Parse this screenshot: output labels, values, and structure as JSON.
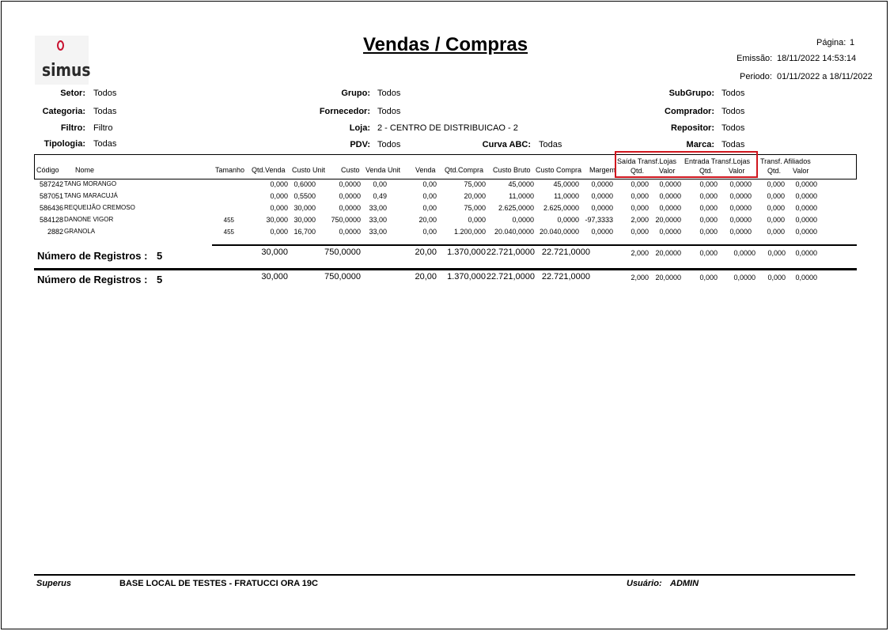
{
  "header": {
    "logo_text": "simus",
    "title": "Vendas / Compras",
    "pagina_label": "Página:",
    "pagina_value": "1",
    "emissao_label": "Emissão:",
    "emissao_value": "18/11/2022 14:53:14",
    "periodo_label": "Periodo:",
    "periodo_value": "01/11/2022 a  18/11/2022"
  },
  "filters": {
    "setor_label": "Setor:",
    "setor": "Todos",
    "grupo_label": "Grupo:",
    "grupo": "Todos",
    "subgrupo_label": "SubGrupo:",
    "subgrupo": "Todos",
    "categoria_label": "Categoria:",
    "categoria": "Todas",
    "fornecedor_label": "Fornecedor:",
    "fornecedor": "Todos",
    "comprador_label": "Comprador:",
    "comprador": "Todos",
    "filtro_label": "Filtro:",
    "filtro": "Filtro",
    "loja_label": "Loja:",
    "loja": "2 - CENTRO DE DISTRIBUICAO - 2",
    "repositor_label": "Repositor:",
    "repositor": "Todos",
    "tipologia_label": "Tipologia:",
    "tipologia": "Todas",
    "pdv_label": "PDV:",
    "pdv": "Todos",
    "curva_label": "Curva ABC:",
    "curva": "Todas",
    "marca_label": "Marca:",
    "marca": "Todas"
  },
  "columns": {
    "codigo": "Código",
    "nome": "Nome",
    "tamanho": "Tamanho",
    "qtd_venda": "Qtd.Venda",
    "custo_unit": "Custo Unit",
    "custo": "Custo",
    "venda_unit": "Venda Unit",
    "venda": "Venda",
    "qtd_compra": "Qtd.Compra",
    "custo_bruto": "Custo Bruto",
    "custo_compra": "Custo Compra",
    "margem": "Margem",
    "saida_group": "Saída Transf.Lojas",
    "saida_qtd": "Qtd.",
    "saida_valor": "Valor",
    "entrada_group": "Entrada Transf.Lojas",
    "entrada_qtd": "Qtd.",
    "entrada_valor": "Valor",
    "afil_group": "Transf. Afiliados",
    "afil_qtd": "Qtd.",
    "afil_valor": "Valor"
  },
  "rows": [
    {
      "codigo": "587242",
      "nome": "TANG MORANGO",
      "tamanho": "",
      "qtd_venda": "0,000",
      "custo_unit": "0,6000",
      "custo": "0,0000",
      "venda_unit": "0,00",
      "venda": "0,00",
      "qtd_compra": "75,000",
      "custo_bruto": "45,0000",
      "custo_compra": "45,0000",
      "margem": "0,0000",
      "s_qtd": "0,000",
      "s_val": "0,0000",
      "e_qtd": "0,000",
      "e_val": "0,0000",
      "a_qtd": "0,000",
      "a_val": "0,0000"
    },
    {
      "codigo": "587051",
      "nome": "TANG MARACUJÁ",
      "tamanho": "",
      "qtd_venda": "0,000",
      "custo_unit": "0,5500",
      "custo": "0,0000",
      "venda_unit": "0,49",
      "venda": "0,00",
      "qtd_compra": "20,000",
      "custo_bruto": "11,0000",
      "custo_compra": "11,0000",
      "margem": "0,0000",
      "s_qtd": "0,000",
      "s_val": "0,0000",
      "e_qtd": "0,000",
      "e_val": "0,0000",
      "a_qtd": "0,000",
      "a_val": "0,0000"
    },
    {
      "codigo": "586436",
      "nome": "REQUEIJÃO CREMOSO",
      "tamanho": "",
      "qtd_venda": "0,000",
      "custo_unit": "30,000",
      "custo": "0,0000",
      "venda_unit": "33,00",
      "venda": "0,00",
      "qtd_compra": "75,000",
      "custo_bruto": "2.625,0000",
      "custo_compra": "2.625,0000",
      "margem": "0,0000",
      "s_qtd": "0,000",
      "s_val": "0,0000",
      "e_qtd": "0,000",
      "e_val": "0,0000",
      "a_qtd": "0,000",
      "a_val": "0,0000"
    },
    {
      "codigo": "584128",
      "nome": "DANONE VIGOR",
      "tamanho": "455",
      "qtd_venda": "30,000",
      "custo_unit": "30,000",
      "custo": "750,0000",
      "venda_unit": "33,00",
      "venda": "20,00",
      "qtd_compra": "0,000",
      "custo_bruto": "0,0000",
      "custo_compra": "0,0000",
      "margem": "-97,3333",
      "s_qtd": "2,000",
      "s_val": "20,0000",
      "e_qtd": "0,000",
      "e_val": "0,0000",
      "a_qtd": "0,000",
      "a_val": "0,0000"
    },
    {
      "codigo": "2882",
      "nome": "GRANOLA",
      "tamanho": "455",
      "qtd_venda": "0,000",
      "custo_unit": "16,700",
      "custo": "0,0000",
      "venda_unit": "33,00",
      "venda": "0,00",
      "qtd_compra": "1.200,000",
      "custo_bruto": "20.040,0000",
      "custo_compra": "20.040,0000",
      "margem": "0,0000",
      "s_qtd": "0,000",
      "s_val": "0,0000",
      "e_qtd": "0,000",
      "e_val": "0,0000",
      "a_qtd": "0,000",
      "a_val": "0,0000"
    }
  ],
  "group_total": {
    "label": "Número de Registros :",
    "count": "5",
    "qtd_venda": "30,000",
    "custo": "750,0000",
    "venda": "20,00",
    "qtd_compra": "1.370,000",
    "custo_bruto": "22.721,0000",
    "custo_compra": "22.721,0000",
    "s_qtd": "2,000",
    "s_val": "20,0000",
    "e_qtd": "0,000",
    "e_val": "0,0000",
    "a_qtd": "0,000",
    "a_val": "0,0000"
  },
  "grand_total": {
    "label": "Número de Registros :",
    "count": "5",
    "qtd_venda": "30,000",
    "custo": "750,0000",
    "venda": "20,00",
    "qtd_compra": "1.370,000",
    "custo_bruto": "22.721,0000",
    "custo_compra": "22.721,0000",
    "s_qtd": "2,000",
    "s_val": "20,0000",
    "e_qtd": "0,000",
    "e_val": "0,0000",
    "a_qtd": "0,000",
    "a_val": "0,0000"
  },
  "footer": {
    "app": "Superus",
    "base": "BASE LOCAL DE TESTES - FRATUCCI ORA 19C",
    "usuario_label": "Usuário:",
    "usuario": "ADMIN"
  },
  "colors": {
    "highlight_box": "#d0161e",
    "logo_ring": "#c8102e"
  }
}
